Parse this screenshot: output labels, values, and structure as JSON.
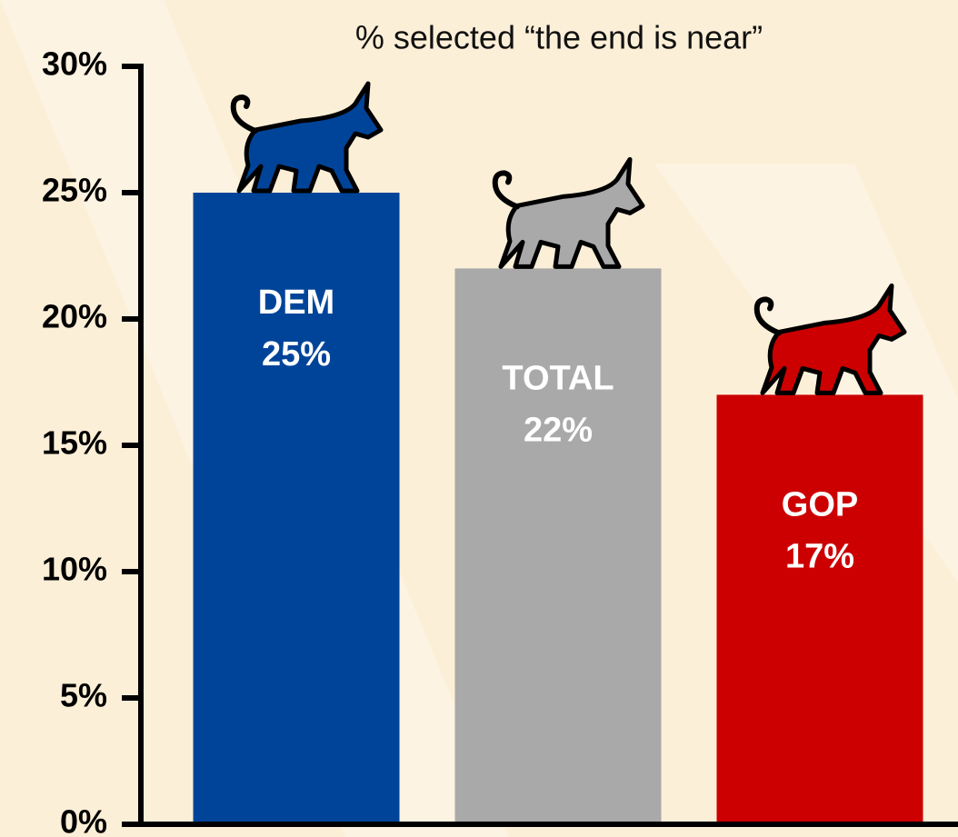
{
  "chart_data": {
    "type": "bar",
    "title": "% selected “the end is near”",
    "categories": [
      "DEM",
      "TOTAL",
      "GOP"
    ],
    "values": [
      25,
      22,
      17
    ],
    "value_labels": [
      "25%",
      "22%",
      "17%"
    ],
    "colors": [
      "#00449a",
      "#a9a9a9",
      "#cc0000"
    ],
    "ylim": [
      0,
      30
    ],
    "yticks": [
      {
        "value": 0,
        "label": "0%"
      },
      {
        "value": 5,
        "label": "5%"
      },
      {
        "value": 10,
        "label": "10%"
      },
      {
        "value": 15,
        "label": "15%"
      },
      {
        "value": 20,
        "label": "20%"
      },
      {
        "value": 25,
        "label": "25%"
      },
      {
        "value": 30,
        "label": "30%"
      }
    ]
  }
}
